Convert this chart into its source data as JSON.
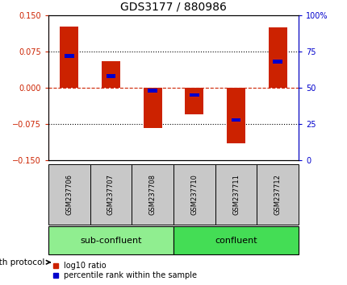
{
  "title": "GDS3177 / 880986",
  "samples": [
    "GSM237706",
    "GSM237707",
    "GSM237708",
    "GSM237710",
    "GSM237711",
    "GSM237712"
  ],
  "log10_ratio": [
    0.127,
    0.055,
    -0.083,
    -0.055,
    -0.115,
    0.125
  ],
  "percentile_rank": [
    72,
    58,
    48,
    45,
    28,
    68
  ],
  "ylim_left": [
    -0.15,
    0.15
  ],
  "ylim_right": [
    0,
    100
  ],
  "yticks_left": [
    -0.15,
    -0.075,
    0,
    0.075,
    0.15
  ],
  "yticks_right": [
    0,
    25,
    50,
    75,
    100
  ],
  "groups": [
    {
      "label": "sub-confluent",
      "start": 0,
      "end": 2,
      "color": "#90EE90"
    },
    {
      "label": "confluent",
      "start": 3,
      "end": 5,
      "color": "#44DD55"
    }
  ],
  "group_label": "growth protocol",
  "bar_width": 0.45,
  "bar_color_red": "#CC2200",
  "bar_color_blue": "#0000CC",
  "blue_bar_width": 0.22,
  "blue_bar_height": 0.007,
  "tick_color_left": "#CC2200",
  "tick_color_right": "#0000CC",
  "xlabel_bg_color": "#C8C8C8",
  "legend_red_label": "log10 ratio",
  "legend_blue_label": "percentile rank within the sample"
}
